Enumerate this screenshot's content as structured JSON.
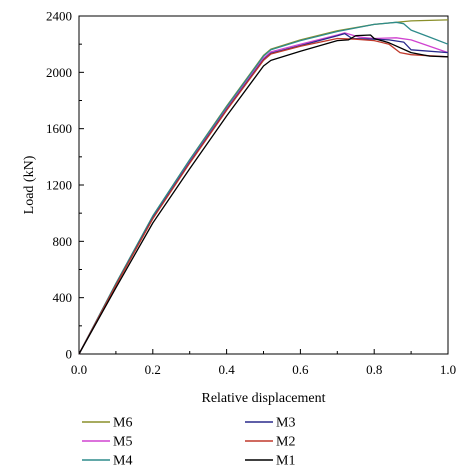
{
  "chart_data": {
    "type": "line",
    "title": "",
    "xlabel": "Relative displacement",
    "ylabel": "Load (kN)",
    "xlim": [
      0.0,
      1.0
    ],
    "ylim": [
      0,
      2400
    ],
    "xticks": [
      0.0,
      0.2,
      0.4,
      0.6,
      0.8,
      1.0
    ],
    "xtick_labels": [
      "0.0",
      "0.2",
      "0.4",
      "0.6",
      "0.8",
      "1.0"
    ],
    "yticks": [
      0,
      400,
      800,
      1200,
      1600,
      2000,
      2400
    ],
    "ytick_labels": [
      "0",
      "400",
      "800",
      "1200",
      "1600",
      "2000",
      "2400"
    ],
    "grid": false,
    "legend_position": "below",
    "series": [
      {
        "name": "M6",
        "color": "#8a8f2a",
        "x": [
          0,
          0.1,
          0.2,
          0.3,
          0.4,
          0.5,
          0.52,
          0.6,
          0.7,
          0.8,
          0.9,
          1.0
        ],
        "y": [
          0,
          500,
          980,
          1380,
          1760,
          2120,
          2165,
          2230,
          2295,
          2340,
          2365,
          2372
        ]
      },
      {
        "name": "M5",
        "color": "#d043d0",
        "x": [
          0,
          0.1,
          0.2,
          0.3,
          0.4,
          0.5,
          0.52,
          0.6,
          0.7,
          0.72,
          0.76,
          0.8,
          0.86,
          0.9,
          1.0
        ],
        "y": [
          0,
          495,
          970,
          1370,
          1745,
          2100,
          2145,
          2200,
          2265,
          2280,
          2250,
          2240,
          2245,
          2230,
          2140
        ]
      },
      {
        "name": "M4",
        "color": "#2e8b8b",
        "x": [
          0,
          0.1,
          0.2,
          0.3,
          0.4,
          0.5,
          0.52,
          0.6,
          0.7,
          0.8,
          0.86,
          0.88,
          0.9,
          0.95,
          1.0
        ],
        "y": [
          0,
          500,
          980,
          1380,
          1755,
          2115,
          2160,
          2225,
          2290,
          2340,
          2355,
          2345,
          2300,
          2250,
          2200
        ]
      },
      {
        "name": "M3",
        "color": "#2a2a8c",
        "x": [
          0,
          0.1,
          0.2,
          0.3,
          0.4,
          0.5,
          0.52,
          0.6,
          0.7,
          0.72,
          0.74,
          0.8,
          0.84,
          0.88,
          0.9,
          1.0
        ],
        "y": [
          0,
          490,
          965,
          1360,
          1735,
          2090,
          2135,
          2190,
          2260,
          2275,
          2240,
          2235,
          2230,
          2215,
          2160,
          2140
        ]
      },
      {
        "name": "M2",
        "color": "#c0392b",
        "x": [
          0,
          0.1,
          0.2,
          0.3,
          0.4,
          0.5,
          0.52,
          0.6,
          0.7,
          0.75,
          0.8,
          0.84,
          0.87,
          0.9,
          1.0
        ],
        "y": [
          0,
          488,
          960,
          1355,
          1730,
          2085,
          2130,
          2185,
          2240,
          2235,
          2225,
          2200,
          2140,
          2125,
          2110
        ]
      },
      {
        "name": "M1",
        "color": "#000000",
        "x": [
          0,
          0.1,
          0.2,
          0.3,
          0.4,
          0.5,
          0.52,
          0.6,
          0.7,
          0.73,
          0.75,
          0.79,
          0.8,
          0.84,
          0.9,
          0.95,
          1.0
        ],
        "y": [
          0,
          470,
          930,
          1315,
          1690,
          2045,
          2085,
          2150,
          2225,
          2230,
          2260,
          2265,
          2240,
          2210,
          2140,
          2115,
          2110
        ]
      }
    ]
  }
}
